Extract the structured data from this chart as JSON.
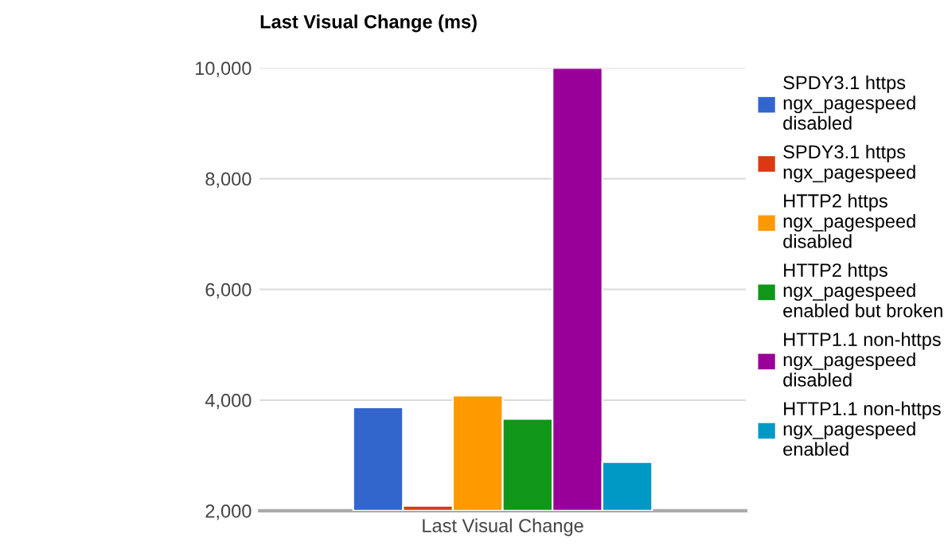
{
  "chart_data": {
    "type": "bar",
    "title": "Last Visual Change (ms)",
    "categories": [
      "Last Visual Change"
    ],
    "series": [
      {
        "name": "SPDY3.1 https ngx_pagespeed disabled",
        "color": "#3366cc",
        "values": [
          3870
        ]
      },
      {
        "name": "SPDY3.1 https ngx_pagespeed",
        "color": "#dc3912",
        "values": [
          2090
        ]
      },
      {
        "name": "HTTP2 https ngx_pagespeed disabled",
        "color": "#ff9900",
        "values": [
          4080
        ]
      },
      {
        "name": "HTTP2 https ngx_pagespeed enabled but broken",
        "color": "#109618",
        "values": [
          3660
        ]
      },
      {
        "name": "HTTP1.1 non-https ngx_pagespeed disabled",
        "color": "#990099",
        "values": [
          10000
        ]
      },
      {
        "name": "HTTP1.1 non-https ngx_pagespeed enabled",
        "color": "#0099c6",
        "values": [
          2880
        ]
      }
    ],
    "ylim": [
      2000,
      10000
    ],
    "yticks": [
      {
        "value": 2000,
        "label": "2,000"
      },
      {
        "value": 4000,
        "label": "4,000"
      },
      {
        "value": 6000,
        "label": "6,000"
      },
      {
        "value": 8000,
        "label": "8,000"
      },
      {
        "value": 10000,
        "label": "10,000"
      }
    ],
    "grid": "y",
    "legend": "right"
  }
}
